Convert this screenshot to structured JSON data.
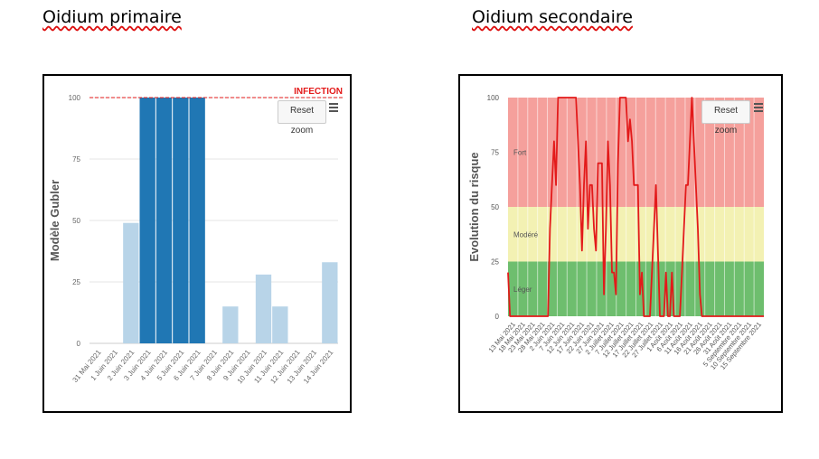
{
  "headings": {
    "left": "Oidium primaire",
    "right": "Oidium secondaire"
  },
  "left_chart": {
    "reset_label": "Reset zoom",
    "menu_icon": "hamburger-menu-icon",
    "infection_label": "INFECTION"
  },
  "right_chart": {
    "reset_label": "Reset zoom",
    "menu_icon": "hamburger-menu-icon"
  },
  "chart_data": [
    {
      "type": "bar",
      "title": "",
      "ylabel": "Modèle Gubler",
      "xlabel": "",
      "ylim": [
        0,
        100
      ],
      "yticks": [
        0,
        25,
        50,
        75,
        100
      ],
      "threshold": {
        "value": 100,
        "label": "INFECTION",
        "color": "#e31a1a"
      },
      "categories": [
        "31 Mai 2021",
        "1 Juin 2021",
        "2 Juin 2021",
        "3 Juin 2021",
        "4 Juin 2021",
        "5 Juin 2021",
        "6 Juin 2021",
        "7 Juin 2021",
        "8 Juin 2021",
        "9 Juin 2021",
        "10 Juin 2021",
        "11 Juin 2021",
        "12 Juin 2021",
        "13 Juin 2021",
        "14 Juin 2021"
      ],
      "values": [
        0,
        0,
        49,
        100,
        100,
        100,
        100,
        0,
        15,
        0,
        28,
        15,
        0,
        0,
        33
      ],
      "colors": {
        "normal": "#b8d4e8",
        "high": "#2077b4"
      },
      "grid": true
    },
    {
      "type": "line",
      "title": "",
      "ylabel": "Evolution du risque",
      "xlabel": "",
      "ylim": [
        0,
        100
      ],
      "yticks": [
        0,
        25,
        50,
        75,
        100
      ],
      "bands": [
        {
          "label": "Léger",
          "from": 0,
          "to": 25,
          "color": "#6ebe6e"
        },
        {
          "label": "Modéré",
          "from": 25,
          "to": 50,
          "color": "#f3f1b3"
        },
        {
          "label": "Fort",
          "from": 50,
          "to": 100,
          "color": "#f5a09c"
        }
      ],
      "x_tick_labels": [
        "13 Mai 2021",
        "18 Mai 2021",
        "23 Mai 2021",
        "28 Mai 2021",
        "2 Juin 2021",
        "7 Juin 2021",
        "12 Juin 2021",
        "17 Juin 2021",
        "22 Juin 2021",
        "27 Juin 2021",
        "2 Juillet 2021",
        "7 Juillet 2021",
        "12 Juillet 2021",
        "17 Juillet 2021",
        "22 Juillet 2021",
        "27 Juillet 2021",
        "1 Août 2021",
        "6 Août 2021",
        "11 Août 2021",
        "16 Août 2021",
        "21 Août 2021",
        "26 Août 2021",
        "31 Août 2021",
        "5 Septembre 2021",
        "10 Septembre 2021",
        "15 Septembre 2021"
      ],
      "series": [
        {
          "color": "#e31a1a",
          "x": [
            0,
            1,
            2,
            3,
            5,
            6,
            7,
            8,
            9,
            10,
            11,
            12,
            13,
            14,
            15,
            16,
            17,
            18,
            19,
            20,
            21,
            22,
            23,
            24,
            25,
            26,
            27,
            28,
            29,
            30,
            31,
            32,
            33,
            34,
            35,
            36,
            37,
            38,
            39,
            40,
            41,
            42,
            43,
            44,
            45,
            46,
            47,
            48,
            49,
            50,
            51,
            52,
            53,
            54,
            55,
            56,
            57,
            58,
            59,
            60,
            61,
            62,
            63,
            64,
            65,
            66,
            67,
            68,
            69,
            70,
            71,
            72,
            73,
            74,
            75,
            76,
            77,
            78,
            79,
            80,
            81,
            82,
            83,
            84,
            85,
            86,
            87,
            88,
            89,
            90,
            91,
            92,
            93,
            94,
            95,
            96,
            97,
            98,
            99,
            100,
            101,
            102,
            103,
            104,
            105,
            106,
            107,
            108,
            109,
            110,
            111,
            112,
            113,
            114,
            115,
            116,
            117,
            118,
            119,
            120,
            121,
            122,
            123,
            124,
            125,
            126,
            127,
            128
          ],
          "y": [
            20,
            0,
            0,
            0,
            0,
            0,
            0,
            0,
            0,
            0,
            0,
            0,
            0,
            0,
            0,
            0,
            0,
            0,
            0,
            0,
            40,
            60,
            80,
            60,
            100,
            100,
            100,
            100,
            100,
            100,
            100,
            100,
            100,
            100,
            80,
            60,
            30,
            60,
            80,
            40,
            60,
            60,
            40,
            30,
            70,
            70,
            70,
            10,
            40,
            80,
            60,
            20,
            20,
            10,
            70,
            100,
            100,
            100,
            100,
            80,
            90,
            80,
            60,
            60,
            60,
            10,
            20,
            0,
            0,
            0,
            0,
            20,
            40,
            60,
            30,
            0,
            0,
            0,
            20,
            0,
            0,
            20,
            0,
            0,
            0,
            0,
            20,
            40,
            60,
            60,
            80,
            100,
            80,
            60,
            40,
            10,
            0,
            0,
            0,
            0,
            0,
            0,
            0,
            0,
            0,
            0,
            0,
            0,
            0,
            0,
            0,
            0,
            0,
            0,
            0,
            0,
            0,
            0,
            0,
            0,
            0,
            0,
            0,
            0,
            0,
            0,
            0,
            0
          ]
        }
      ],
      "grid": true
    }
  ]
}
